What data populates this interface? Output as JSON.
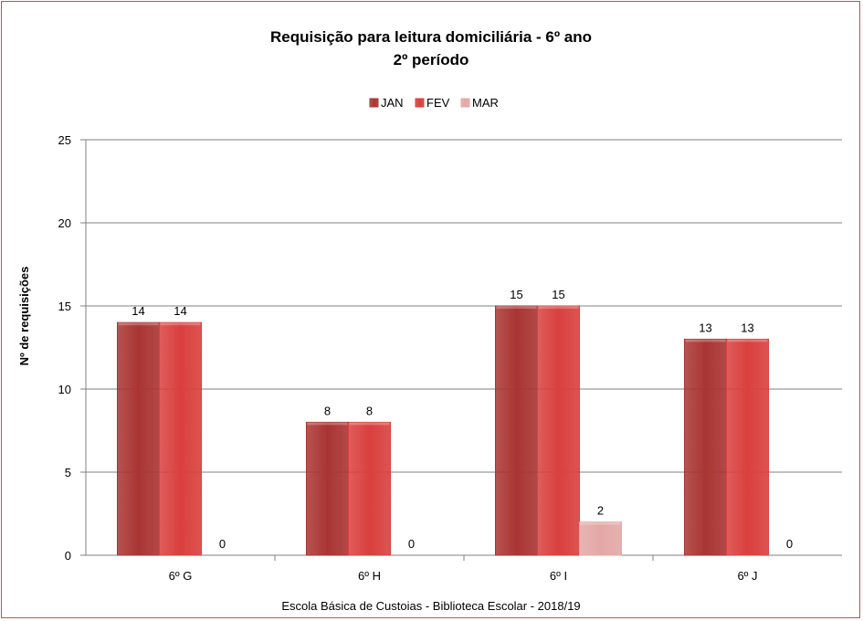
{
  "chart_data": {
    "type": "bar",
    "title": "Requisição para leitura domiciliária  - 6º ano",
    "subtitle": "2º período",
    "ylabel": "Nº de requisições",
    "xlabel": "",
    "categories": [
      "6º G",
      "6º H",
      "6º I",
      "6º J"
    ],
    "series": [
      {
        "name": "JAN",
        "values": [
          14,
          8,
          15,
          13
        ],
        "color": "#a93533"
      },
      {
        "name": "FEV",
        "values": [
          14,
          8,
          15,
          13
        ],
        "color": "#d9403e"
      },
      {
        "name": "MAR",
        "values": [
          0,
          0,
          2,
          0
        ],
        "color": "#e3a8a6"
      }
    ],
    "ylim": [
      0,
      25
    ],
    "yticks": [
      0,
      5,
      10,
      15,
      20,
      25
    ],
    "grid": true,
    "legend_position": "top",
    "data_labels": true
  },
  "footer": "Escola Básica de Custoias - Biblioteca Escolar  - 2018/19"
}
